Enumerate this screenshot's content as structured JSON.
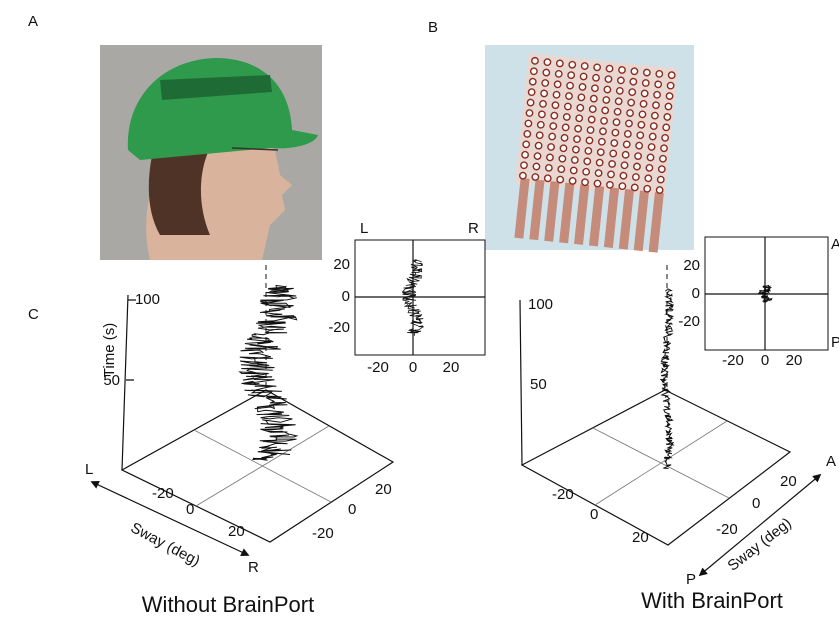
{
  "panels": {
    "a": "A",
    "b": "B",
    "c": "C"
  },
  "left": {
    "caption": "Without BrainPort",
    "time_label": "Time (s)",
    "time_ticks": [
      "100",
      "50"
    ],
    "sway_label": "Sway (deg)",
    "dir_start": "L",
    "dir_end": "R",
    "floor_ticks_a": [
      "-20",
      "0",
      "20"
    ],
    "floor_ticks_b": [
      "20",
      "0",
      "-20"
    ],
    "inset": {
      "left": "L",
      "right": "R",
      "yticks": [
        "20",
        "0",
        "-20"
      ],
      "xticks": [
        "-20",
        "0",
        "20"
      ]
    }
  },
  "right": {
    "caption": "With BrainPort",
    "time_ticks": [
      "100",
      "50"
    ],
    "sway_label": "Sway (deg)",
    "dir_start": "A",
    "dir_end": "P",
    "floor_ticks_a": [
      "-20",
      "0",
      "20"
    ],
    "floor_ticks_b": [
      "20",
      "0",
      "-20"
    ],
    "inset": {
      "top": "A",
      "bottom": "P",
      "yticks": [
        "20",
        "0",
        "-20"
      ],
      "xticks": [
        "-20",
        "0",
        "20"
      ]
    }
  }
}
